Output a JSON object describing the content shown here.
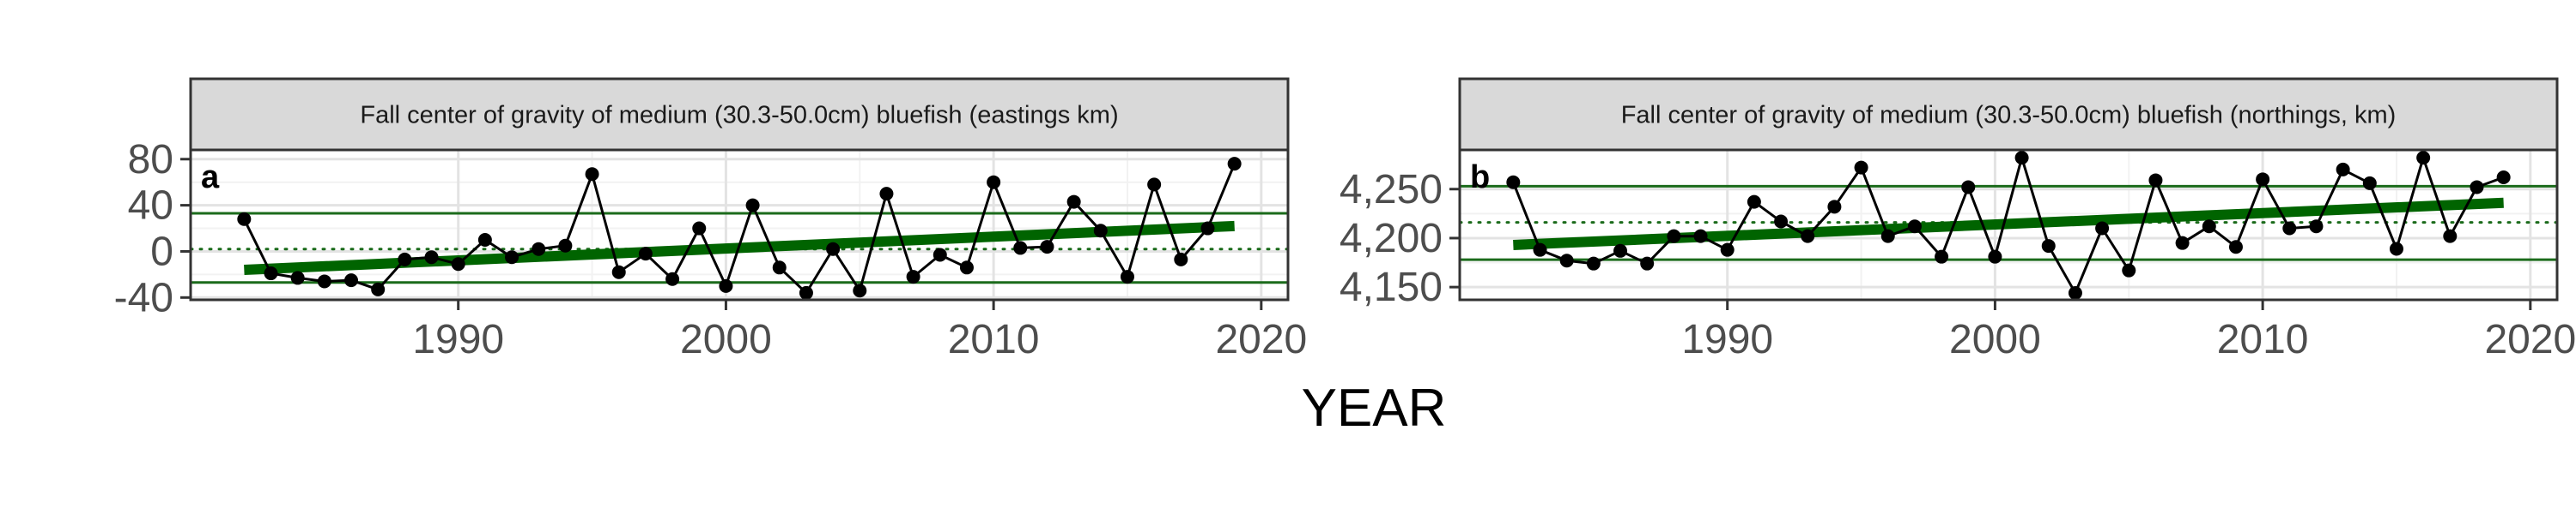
{
  "shared_xlabel": "YEAR",
  "chart_data": [
    {
      "type": "line",
      "strip_title": "Fall center of gravity of medium (30.3-50.0cm) bluefish (eastings km)",
      "panel_tag": "a",
      "xlim": [
        1980,
        2021
      ],
      "ylim": [
        -42,
        88
      ],
      "x_ticks": [
        1990,
        2000,
        2010,
        2020
      ],
      "x_tick_labels": [
        "1990",
        "2000",
        "2010",
        "2020"
      ],
      "y_ticks": [
        -40,
        0,
        40,
        80
      ],
      "y_tick_labels": [
        "-40",
        "0",
        "40",
        "80"
      ],
      "grid": true,
      "series": [
        {
          "x": [
            1982,
            1983,
            1984,
            1985,
            1986,
            1987,
            1988,
            1989,
            1990,
            1991,
            1992,
            1993,
            1994,
            1995,
            1996,
            1997,
            1998,
            1999,
            2000,
            2001,
            2002,
            2003,
            2004,
            2005,
            2006,
            2007,
            2008,
            2009,
            2010,
            2011,
            2012,
            2013,
            2014,
            2015,
            2016,
            2017,
            2018,
            2019
          ],
          "y": [
            28,
            -19,
            -23,
            -26,
            -25,
            -33,
            -7,
            -5,
            -11,
            10,
            -5,
            2,
            5,
            67,
            -18,
            -2,
            -24,
            20,
            -30,
            40,
            -14,
            -36,
            2,
            -34,
            50,
            -22,
            -3,
            -14,
            60,
            3,
            4,
            43,
            18,
            -22,
            58,
            -7,
            20,
            76
          ]
        }
      ],
      "trend_line": {
        "x": [
          1982,
          2019
        ],
        "y": [
          -16,
          22
        ]
      },
      "mean_line": 2,
      "band_lines": [
        -27,
        33
      ]
    },
    {
      "type": "line",
      "strip_title": "Fall center of gravity of medium (30.3-50.0cm) bluefish (northings, km)",
      "panel_tag": "b",
      "xlim": [
        1980,
        2021
      ],
      "ylim": [
        4137,
        4290
      ],
      "x_ticks": [
        1990,
        2000,
        2010,
        2020
      ],
      "x_tick_labels": [
        "1990",
        "2000",
        "2010",
        "2020"
      ],
      "y_ticks": [
        4150,
        4200,
        4250
      ],
      "y_tick_labels": [
        "4,150",
        "4,200",
        "4,250"
      ],
      "grid": true,
      "series": [
        {
          "x": [
            1982,
            1983,
            1984,
            1985,
            1986,
            1987,
            1988,
            1989,
            1990,
            1991,
            1992,
            1993,
            1994,
            1995,
            1996,
            1997,
            1998,
            1999,
            2000,
            2001,
            2002,
            2003,
            2004,
            2005,
            2006,
            2007,
            2008,
            2009,
            2010,
            2011,
            2012,
            2013,
            2014,
            2015,
            2016,
            2017,
            2018,
            2019
          ],
          "y": [
            4257,
            4188,
            4177,
            4174,
            4187,
            4174,
            4202,
            4202,
            4188,
            4237,
            4217,
            4202,
            4232,
            4272,
            4202,
            4212,
            4181,
            4252,
            4181,
            4282,
            4192,
            4144,
            4210,
            4167,
            4259,
            4195,
            4212,
            4191,
            4260,
            4210,
            4212,
            4270,
            4256,
            4189,
            4282,
            4202,
            4252,
            4262
          ]
        }
      ],
      "trend_line": {
        "x": [
          1982,
          2019
        ],
        "y": [
          4193,
          4236
        ]
      },
      "mean_line": 4216,
      "band_lines": [
        4178,
        4253
      ]
    }
  ],
  "colors": {
    "series": "#000000",
    "trend": "#006400",
    "reference": "#1b6b1b",
    "strip_fill": "#d9d9d9",
    "strip_border": "#333333",
    "grid_major": "#e3e3e3",
    "grid_minor": "#f2f2f2",
    "axis_text": "#4d4d4d"
  }
}
